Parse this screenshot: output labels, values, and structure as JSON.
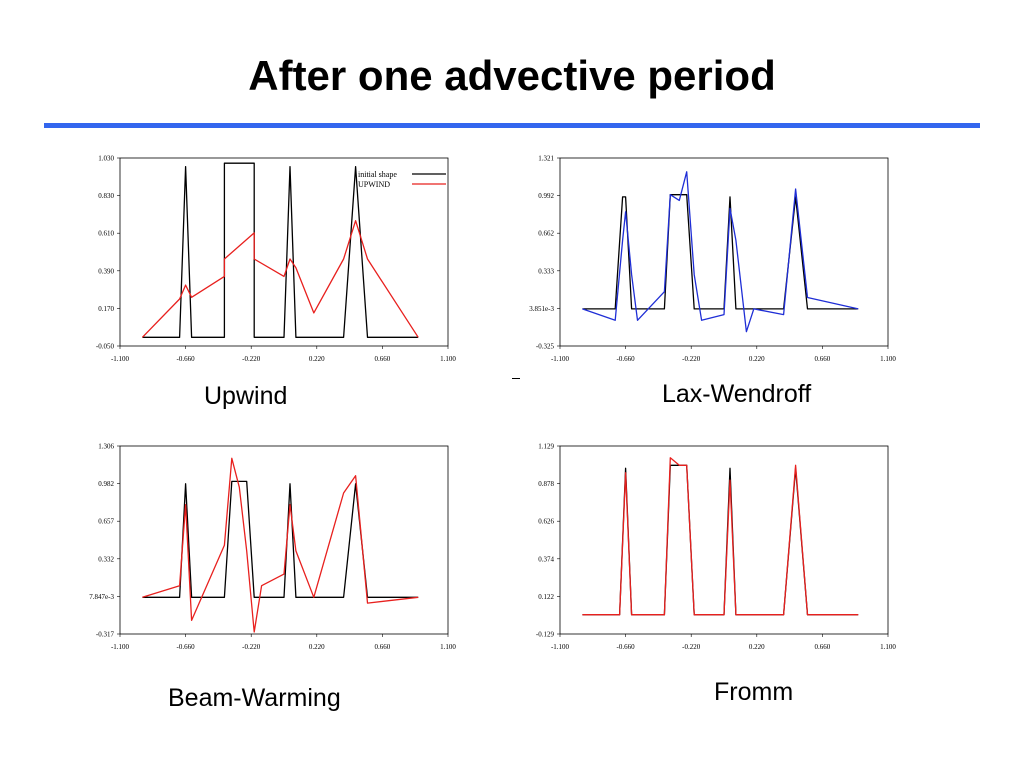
{
  "slide": {
    "title": "After one advective period"
  },
  "captions": [
    "Upwind",
    "Lax-Wendroff",
    "Beam-Warming",
    "Fromm"
  ],
  "colors": {
    "accent_rule": "#3366ee",
    "initial": "#000000",
    "upwind": "#e8201e",
    "lax_wendroff": "#1f2ed6",
    "beam_warming": "#e8201e",
    "fromm": "#e8201e"
  },
  "chart_data": [
    {
      "type": "line",
      "title": "Upwind",
      "xlim": [
        -1.1,
        1.1
      ],
      "ylim": [
        -0.05,
        1.03
      ],
      "xticks": [
        "-1.100",
        "-0.660",
        "-0.220",
        "0.220",
        "0.660",
        "1.100"
      ],
      "yticks": [
        "1.030",
        "0.830",
        "0.610",
        "0.390",
        "0.170",
        "-0.050"
      ],
      "legend": {
        "position": "top-right",
        "entries": [
          "initial shape",
          "UPWIND"
        ]
      },
      "x": [
        -0.95,
        -0.7,
        -0.66,
        -0.62,
        -0.4,
        -0.4,
        -0.2,
        -0.2,
        0,
        0.04,
        0.08,
        0.2,
        0.2,
        0.4,
        0.48,
        0.56,
        0.9
      ],
      "series": [
        {
          "name": "initial shape",
          "values": [
            0,
            0,
            0.98,
            0,
            0,
            1,
            1,
            0,
            0,
            0.98,
            0,
            0,
            0,
            0,
            0.98,
            0,
            0
          ]
        },
        {
          "name": "UPWIND",
          "values": [
            0,
            0.22,
            0.3,
            0.23,
            0.35,
            0.45,
            0.6,
            0.45,
            0.35,
            0.45,
            0.4,
            0.14,
            0.14,
            0.45,
            0.67,
            0.45,
            0
          ]
        }
      ]
    },
    {
      "type": "line",
      "title": "Lax-Wendroff",
      "xlim": [
        -1.1,
        1.1
      ],
      "ylim": [
        -0.325,
        1.321
      ],
      "xticks": [
        "-1.100",
        "-0.660",
        "-0.220",
        "0.220",
        "0.660",
        "1.100"
      ],
      "yticks": [
        "1.321",
        "0.992",
        "0.662",
        "0.333",
        "3.851e-3",
        "-0.325"
      ],
      "x": [
        -0.95,
        -0.73,
        -0.68,
        -0.66,
        -0.62,
        -0.58,
        -0.4,
        -0.36,
        -0.3,
        -0.25,
        -0.2,
        -0.15,
        0,
        0.04,
        0.08,
        0.15,
        0.2,
        0.4,
        0.48,
        0.56,
        0.9
      ],
      "series": [
        {
          "name": "initial shape",
          "values": [
            0,
            0,
            0.98,
            0.98,
            0,
            0,
            0,
            1,
            1,
            1,
            0,
            0,
            0,
            0.98,
            0,
            0,
            0,
            0,
            0.98,
            0,
            0
          ]
        },
        {
          "name": "Lax-Wendroff",
          "values": [
            0,
            -0.1,
            0.6,
            0.85,
            0.3,
            -0.1,
            0.15,
            1.0,
            0.95,
            1.2,
            0.3,
            -0.1,
            -0.05,
            0.88,
            0.6,
            -0.2,
            0.0,
            -0.05,
            1.05,
            0.1,
            0
          ]
        }
      ]
    },
    {
      "type": "line",
      "title": "Beam-Warming",
      "xlim": [
        -1.1,
        1.1
      ],
      "ylim": [
        -0.317,
        1.306
      ],
      "xticks": [
        "-1.100",
        "-0.660",
        "-0.220",
        "0.220",
        "0.660",
        "1.100"
      ],
      "yticks": [
        "1.306",
        "0.982",
        "0.657",
        "0.332",
        "7.847e-3",
        "-0.317"
      ],
      "x": [
        -0.95,
        -0.7,
        -0.66,
        -0.62,
        -0.4,
        -0.35,
        -0.3,
        -0.25,
        -0.2,
        -0.15,
        0,
        0.04,
        0.08,
        0.2,
        0.4,
        0.48,
        0.56,
        0.9
      ],
      "series": [
        {
          "name": "initial shape",
          "values": [
            0,
            0,
            0.98,
            0,
            0,
            1,
            1,
            1,
            0,
            0,
            0,
            0.98,
            0,
            0,
            0,
            0.98,
            0,
            0
          ]
        },
        {
          "name": "Beam-Warming",
          "values": [
            0,
            0.1,
            0.8,
            -0.2,
            0.45,
            1.2,
            0.95,
            0.4,
            -0.3,
            0.1,
            0.2,
            0.8,
            0.4,
            0,
            0.9,
            1.05,
            -0.05,
            0
          ]
        }
      ]
    },
    {
      "type": "line",
      "title": "Fromm",
      "xlim": [
        -1.1,
        1.1
      ],
      "ylim": [
        -0.129,
        1.129
      ],
      "xticks": [
        "-1.100",
        "-0.660",
        "-0.220",
        "0.220",
        "0.660",
        "1.100"
      ],
      "yticks": [
        "1.129",
        "0.878",
        "0.626",
        "0.374",
        "0.122",
        "-0.129"
      ],
      "x": [
        -0.95,
        -0.7,
        -0.66,
        -0.62,
        -0.4,
        -0.36,
        -0.3,
        -0.25,
        -0.2,
        -0.15,
        0,
        0.04,
        0.08,
        0.2,
        0.4,
        0.48,
        0.56,
        0.9
      ],
      "series": [
        {
          "name": "initial shape",
          "values": [
            0,
            0,
            0.98,
            0,
            0,
            1,
            1,
            1,
            0,
            0,
            0,
            0.98,
            0,
            0,
            0,
            0.98,
            0,
            0
          ]
        },
        {
          "name": "Fromm",
          "values": [
            0,
            0,
            0.95,
            0,
            0,
            1.05,
            1.0,
            1.0,
            0,
            0,
            0,
            0.9,
            0,
            0,
            0,
            1.0,
            0,
            0
          ]
        }
      ]
    }
  ]
}
